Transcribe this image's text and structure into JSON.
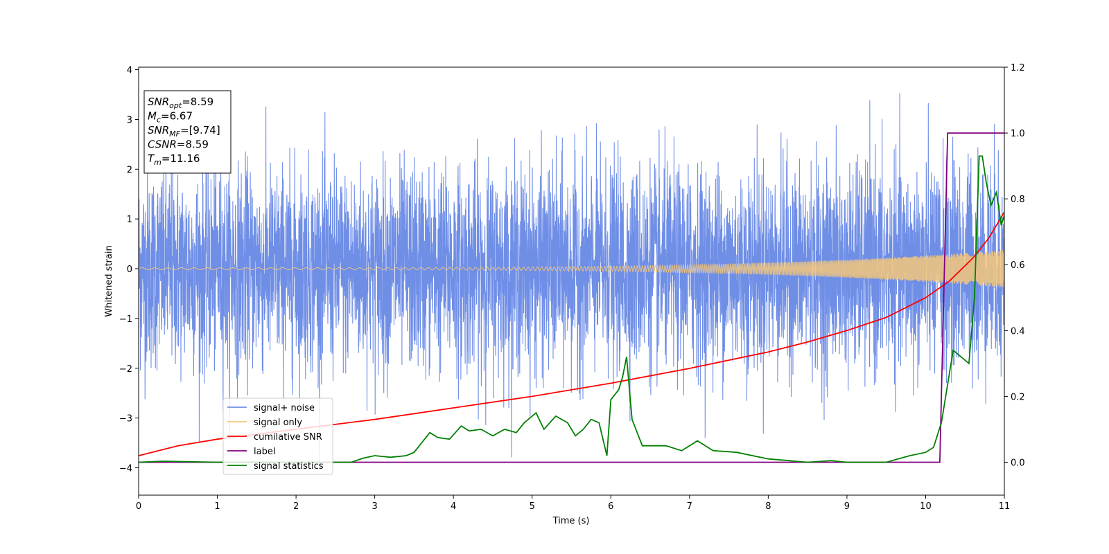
{
  "chart_data": {
    "type": "line",
    "xlabel": "Time (s)",
    "ylabel": "Whitened strain",
    "xlim": [
      0,
      11
    ],
    "ylim_left": [
      -4.55,
      4.05
    ],
    "ylim_right": [
      -0.1,
      1.2
    ],
    "x_ticks": [
      0,
      1,
      2,
      3,
      4,
      5,
      6,
      7,
      8,
      9,
      10,
      11
    ],
    "y_left_ticks": [
      4,
      3,
      2,
      1,
      0,
      -1,
      -2,
      -3,
      -4
    ],
    "y_left_tick_labels": [
      "4",
      "3",
      "2",
      "1",
      "0",
      "−1",
      "−2",
      "−3",
      "−4"
    ],
    "y_right_ticks": [
      1.2,
      1.0,
      0.8,
      0.6,
      0.4,
      0.2,
      0.0
    ],
    "y_right_tick_labels": [
      "1.2",
      "1.0",
      "0.8",
      "0.6",
      "0.4",
      "0.2",
      "0.0"
    ],
    "grid": false,
    "legend_position": "lower-left",
    "colors": {
      "noise": "#6f8ee6",
      "signal": "#f5c77a",
      "csnr": "#ff0000",
      "label": "#800080",
      "stats": "#008000"
    },
    "annotation": [
      {
        "var": "SNR",
        "sub": "opt",
        "value": "=8.59"
      },
      {
        "var": "M",
        "sub": "c",
        "value": "=6.67"
      },
      {
        "var": "SNR",
        "sub": "MF",
        "value": "=[9.74]"
      },
      {
        "var": "CSNR",
        "sub": "",
        "value": "=8.59"
      },
      {
        "var": "T",
        "sub": "m",
        "value": "=11.16"
      }
    ],
    "series": [
      {
        "name": "signal+ noise",
        "axis": "left",
        "approx_range": [
          -4.15,
          3.65
        ],
        "note": "whitened noise, roughly unit variance"
      },
      {
        "name": "signal only",
        "axis": "left",
        "amplitude_start": 0.02,
        "amplitude_end": 0.38
      },
      {
        "name": "cumilative SNR",
        "axis": "right",
        "x": [
          0,
          0.5,
          1,
          2,
          3,
          4,
          5,
          6,
          7,
          8,
          8.5,
          9,
          9.5,
          10,
          10.3,
          10.6,
          10.8,
          11
        ],
        "y": [
          0.02,
          0.05,
          0.07,
          0.1,
          0.13,
          0.165,
          0.2,
          0.24,
          0.285,
          0.335,
          0.365,
          0.4,
          0.44,
          0.5,
          0.55,
          0.62,
          0.68,
          0.76
        ]
      },
      {
        "name": "label",
        "axis": "right",
        "x": [
          0,
          10.18,
          10.28,
          11
        ],
        "y": [
          0,
          0,
          1,
          1
        ]
      },
      {
        "name": "signal statistics",
        "axis": "right",
        "x": [
          0,
          0.3,
          1,
          2,
          2.7,
          2.85,
          3,
          3.2,
          3.4,
          3.5,
          3.7,
          3.8,
          3.95,
          4.1,
          4.2,
          4.35,
          4.5,
          4.65,
          4.8,
          4.9,
          5.05,
          5.15,
          5.3,
          5.45,
          5.55,
          5.65,
          5.75,
          5.85,
          5.95,
          6.0,
          6.1,
          6.15,
          6.2,
          6.27,
          6.4,
          6.55,
          6.7,
          6.9,
          7.1,
          7.3,
          7.6,
          8,
          8.5,
          8.8,
          9,
          9.5,
          9.8,
          10.0,
          10.1,
          10.2,
          10.35,
          10.45,
          10.55,
          10.62,
          10.68,
          10.72,
          10.77,
          10.83,
          10.9,
          10.96,
          11.0
        ],
        "y": [
          0.0,
          0.003,
          0.0,
          0.0,
          0.0,
          0.012,
          0.02,
          0.015,
          0.02,
          0.03,
          0.09,
          0.075,
          0.07,
          0.11,
          0.095,
          0.1,
          0.08,
          0.1,
          0.09,
          0.12,
          0.15,
          0.1,
          0.14,
          0.12,
          0.08,
          0.1,
          0.13,
          0.12,
          0.02,
          0.19,
          0.22,
          0.26,
          0.32,
          0.13,
          0.05,
          0.05,
          0.05,
          0.035,
          0.065,
          0.035,
          0.03,
          0.01,
          0.0,
          0.005,
          0.0,
          0.0,
          0.02,
          0.03,
          0.045,
          0.12,
          0.34,
          0.32,
          0.3,
          0.5,
          0.93,
          0.93,
          0.85,
          0.78,
          0.82,
          0.72,
          0.75
        ]
      }
    ]
  }
}
